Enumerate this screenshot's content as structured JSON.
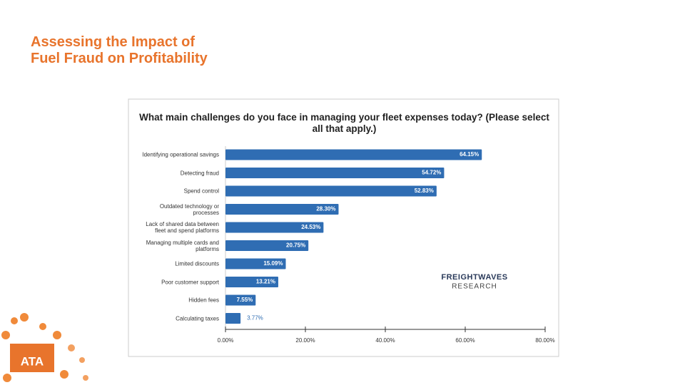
{
  "slide": {
    "title_lines": [
      "Assessing the Impact of",
      "Fuel Fraud on Profitability"
    ],
    "logo": "ATA"
  },
  "chart_data": {
    "type": "bar",
    "orientation": "horizontal",
    "title": "What main challenges do you face in managing your fleet expenses today? (Please select all that apply.)",
    "categories": [
      "Identifying operational savings",
      "Detecting fraud",
      "Spend control",
      "Outdated technology or processes",
      "Lack of shared data between fleet and spend platforms",
      "Managing multiple cards and platforms",
      "Limited discounts",
      "Poor customer support",
      "Hidden fees",
      "Calculating taxes"
    ],
    "values": [
      64.15,
      54.72,
      52.83,
      28.3,
      24.53,
      20.75,
      15.09,
      13.21,
      7.55,
      3.77
    ],
    "value_labels": [
      "64.15%",
      "54.72%",
      "52.83%",
      "28.30%",
      "24.53%",
      "20.75%",
      "15.09%",
      "13.21%",
      "7.55%",
      "3.77%"
    ],
    "color": "#2f6db3",
    "xlim": [
      0,
      80
    ],
    "xticks": [
      {
        "value": 0,
        "label": "0.00%"
      },
      {
        "value": 20,
        "label": "20.00%"
      },
      {
        "value": 40,
        "label": "40.00%"
      },
      {
        "value": 60,
        "label": "60.00%"
      },
      {
        "value": 80,
        "label": "80.00%"
      }
    ],
    "watermark": [
      "FREIGHTWAVES",
      "RESEARCH"
    ]
  }
}
